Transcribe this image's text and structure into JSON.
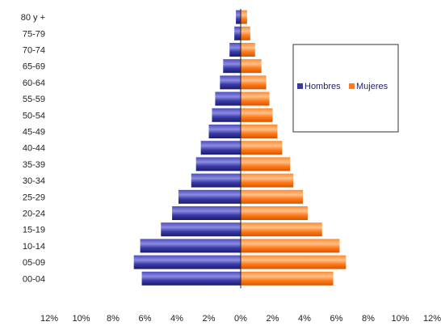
{
  "chart_data": {
    "type": "bar",
    "orientation": "horizontal-population-pyramid",
    "categories": [
      "00-04",
      "05-09",
      "10-14",
      "15-19",
      "20-24",
      "25-29",
      "30-34",
      "35-39",
      "40-44",
      "45-49",
      "50-54",
      "55-59",
      "60-64",
      "65-69",
      "70-74",
      "75-79",
      "80 y +"
    ],
    "series": [
      {
        "name": "Hombres",
        "color": "#3a3aa0",
        "side": "left",
        "values": [
          6.2,
          6.7,
          6.3,
          5.0,
          4.3,
          3.9,
          3.1,
          2.8,
          2.5,
          2.0,
          1.8,
          1.6,
          1.3,
          1.1,
          0.7,
          0.4,
          0.3
        ]
      },
      {
        "name": "Mujeres",
        "color": "#ff7a1a",
        "side": "right",
        "values": [
          5.8,
          6.6,
          6.2,
          5.1,
          4.2,
          3.9,
          3.3,
          3.1,
          2.6,
          2.3,
          2.0,
          1.8,
          1.6,
          1.3,
          0.9,
          0.6,
          0.4
        ]
      }
    ],
    "xticks": [
      "12%",
      "10%",
      "8%",
      "6%",
      "4%",
      "2%",
      "0%",
      "2%",
      "4%",
      "6%",
      "8%",
      "10%",
      "12%"
    ],
    "xlim": [
      -12,
      12
    ],
    "xlabel": "",
    "ylabel": "",
    "title": "",
    "legend_position": "right",
    "grid": false
  }
}
